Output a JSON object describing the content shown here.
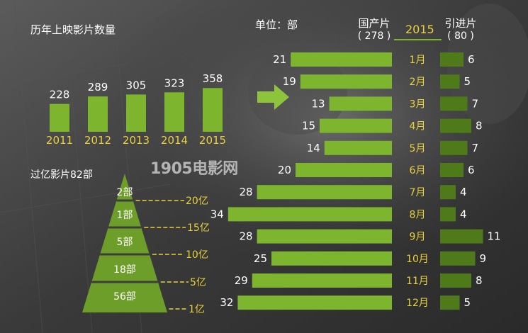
{
  "source_logo": "1905电影网",
  "annual": {
    "title": "历年上映影片数量",
    "colors": {
      "bar": "#7db52e",
      "year": "#e8d23a",
      "value": "#ffffff"
    }
  },
  "pyramid": {
    "title": "过亿影片82部",
    "levels": [
      {
        "count_label": "2部",
        "threshold_label": "20亿"
      },
      {
        "count_label": "1部",
        "threshold_label": "15亿"
      },
      {
        "count_label": "5部",
        "threshold_label": "10亿"
      },
      {
        "count_label": "18部",
        "threshold_label": "5亿"
      },
      {
        "count_label": "56部",
        "threshold_label": "1亿"
      }
    ],
    "colors": {
      "fill": "#6e9e2a",
      "dash": "#e8d23a"
    }
  },
  "monthly": {
    "unit_label": "单位：部",
    "year_label": "2015",
    "domestic_label": "国产片",
    "domestic_total": "( 278 )",
    "imported_label": "引进片",
    "imported_total": "( 80 )",
    "colors": {
      "domestic": "#7db52e",
      "imported": "#4f7a1a",
      "month": "#e8d23a"
    }
  },
  "chart_data": [
    {
      "type": "bar",
      "title": "历年上映影片数量",
      "categories": [
        "2011",
        "2012",
        "2013",
        "2014",
        "2015"
      ],
      "values": [
        228,
        289,
        305,
        323,
        358
      ]
    },
    {
      "type": "bar",
      "title": "过亿影片82部",
      "categories": [
        "20亿",
        "15亿",
        "10亿",
        "5亿",
        "1亿"
      ],
      "values": [
        2,
        1,
        5,
        18,
        56
      ]
    },
    {
      "type": "bar",
      "orientation": "horizontal",
      "title": "2015",
      "ylabel": "单位：部",
      "categories": [
        "1月",
        "2月",
        "3月",
        "4月",
        "5月",
        "6月",
        "7月",
        "8月",
        "9月",
        "10月",
        "11月",
        "12月"
      ],
      "series": [
        {
          "name": "国产片",
          "values": [
            21,
            19,
            13,
            15,
            14,
            20,
            28,
            34,
            28,
            25,
            29,
            32
          ]
        },
        {
          "name": "引进片",
          "values": [
            6,
            5,
            7,
            8,
            7,
            6,
            4,
            4,
            11,
            9,
            8,
            5
          ]
        }
      ]
    }
  ]
}
